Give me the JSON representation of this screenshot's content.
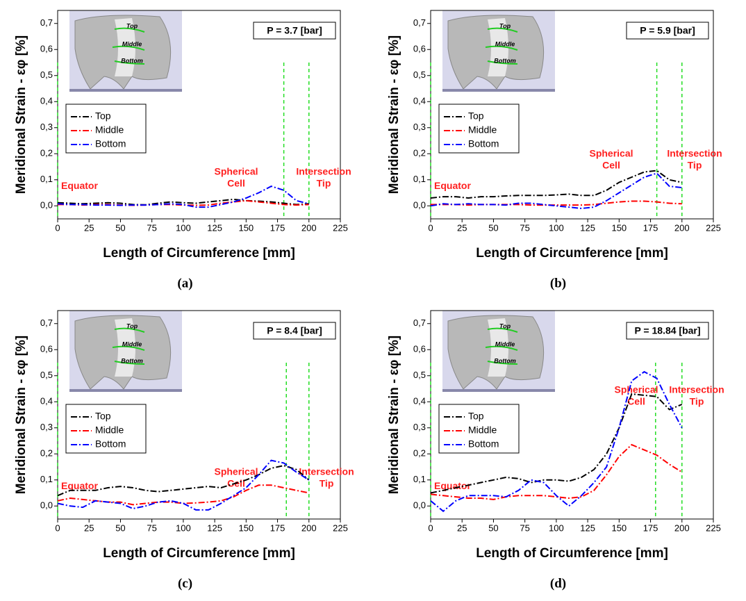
{
  "chart_data": [
    {
      "type": "line",
      "panel_label": "(a)",
      "pressure_label": "P = 3.7 [bar]",
      "xlabel": "Length of Circumference [mm]",
      "ylabel": "Meridional Strain - εφ [%]",
      "equator_label": "Equator",
      "spherical_label": [
        "Spherical",
        "Cell"
      ],
      "intersection_label": [
        "Intersection",
        "Tip"
      ],
      "inset_labels": [
        "Top",
        "Middle",
        "Bottom"
      ],
      "line_style": "dash-dot",
      "vline_color": "#22dd22",
      "vlines": [
        0,
        180,
        200
      ],
      "xlim": [
        0,
        225
      ],
      "xticks": [
        0,
        25,
        50,
        75,
        100,
        125,
        150,
        175,
        200,
        225
      ],
      "ylim": [
        -0.05,
        0.75
      ],
      "yticks": [
        {
          "value": 0,
          "label": "0,0"
        },
        {
          "value": 0.1,
          "label": "0,1"
        },
        {
          "value": 0.2,
          "label": "0,2"
        },
        {
          "value": 0.3,
          "label": "0,3"
        },
        {
          "value": 0.4,
          "label": "0,4"
        },
        {
          "value": 0.5,
          "label": "0,5"
        },
        {
          "value": 0.6,
          "label": "0,6"
        },
        {
          "value": 0.7,
          "label": "0,7"
        }
      ],
      "x": [
        0,
        10,
        20,
        30,
        40,
        50,
        60,
        70,
        80,
        90,
        100,
        110,
        120,
        130,
        140,
        150,
        160,
        170,
        180,
        190,
        200
      ],
      "series": [
        {
          "name": "Top",
          "color": "#000000",
          "values": [
            0.012,
            0.01,
            0.008,
            0.01,
            0.012,
            0.01,
            0.005,
            0.004,
            0.01,
            0.015,
            0.012,
            0.01,
            0.015,
            0.02,
            0.025,
            0.02,
            0.018,
            0.015,
            0.01,
            0.005,
            0.008
          ]
        },
        {
          "name": "Middle",
          "color": "#ff0000",
          "values": [
            0.005,
            0.005,
            0.003,
            0.005,
            0.005,
            0.003,
            0.002,
            0.003,
            0.005,
            0.005,
            0.003,
            0.002,
            0.003,
            0.01,
            0.015,
            0.02,
            0.015,
            0.01,
            0.005,
            0.003,
            0.005
          ]
        },
        {
          "name": "Bottom",
          "color": "#0000ff",
          "values": [
            0.008,
            0.005,
            0.005,
            0.003,
            0.003,
            0.002,
            0.003,
            0.003,
            0.005,
            0.008,
            0.005,
            -0.005,
            -0.005,
            0.005,
            0.015,
            0.03,
            0.05,
            0.075,
            0.06,
            0.02,
            0.008
          ]
        }
      ]
    },
    {
      "type": "line",
      "panel_label": "(b)",
      "pressure_label": "P = 5.9 [bar]",
      "xlabel": "Length of Circumference [mm]",
      "ylabel": "Meridional Strain - εφ [%]",
      "equator_label": "Equator",
      "spherical_label": [
        "Spherical",
        "Cell"
      ],
      "intersection_label": [
        "Intersection",
        "Tip"
      ],
      "inset_labels": [
        "Top",
        "Middle",
        "Bottom"
      ],
      "line_style": "dash-dot",
      "vline_color": "#22dd22",
      "vlines": [
        0,
        180,
        200
      ],
      "xlim": [
        0,
        225
      ],
      "xticks": [
        0,
        25,
        50,
        75,
        100,
        125,
        150,
        175,
        200,
        225
      ],
      "ylim": [
        -0.05,
        0.75
      ],
      "yticks": [
        {
          "value": 0,
          "label": "0,0"
        },
        {
          "value": 0.1,
          "label": "0,1"
        },
        {
          "value": 0.2,
          "label": "0,2"
        },
        {
          "value": 0.3,
          "label": "0,3"
        },
        {
          "value": 0.4,
          "label": "0,4"
        },
        {
          "value": 0.5,
          "label": "0,5"
        },
        {
          "value": 0.6,
          "label": "0,6"
        },
        {
          "value": 0.7,
          "label": "0,7"
        }
      ],
      "x": [
        0,
        10,
        20,
        30,
        40,
        50,
        60,
        70,
        80,
        90,
        100,
        110,
        120,
        130,
        140,
        150,
        160,
        170,
        180,
        190,
        200
      ],
      "series": [
        {
          "name": "Top",
          "color": "#000000",
          "values": [
            0.03,
            0.035,
            0.035,
            0.03,
            0.035,
            0.035,
            0.038,
            0.04,
            0.04,
            0.04,
            0.042,
            0.045,
            0.04,
            0.04,
            0.06,
            0.09,
            0.11,
            0.13,
            0.135,
            0.1,
            0.09
          ]
        },
        {
          "name": "Middle",
          "color": "#ff0000",
          "values": [
            0.005,
            0.005,
            0.005,
            0.003,
            0.005,
            0.005,
            0.005,
            0.005,
            0.003,
            0.003,
            0.003,
            0.003,
            0.003,
            0.005,
            0.01,
            0.015,
            0.018,
            0.018,
            0.015,
            0.01,
            0.008
          ]
        },
        {
          "name": "Bottom",
          "color": "#0000ff",
          "values": [
            0,
            0.008,
            0.005,
            0.008,
            0.005,
            0.005,
            0.003,
            0.01,
            0.01,
            0.005,
            0,
            -0.005,
            -0.01,
            -0.005,
            0.02,
            0.05,
            0.08,
            0.11,
            0.125,
            0.075,
            0.07
          ]
        }
      ]
    },
    {
      "type": "line",
      "panel_label": "(c)",
      "pressure_label": "P = 8.4 [bar]",
      "xlabel": "Length of Circumference [mm]",
      "ylabel": "Meridional Strain - εφ [%]",
      "equator_label": "Equator",
      "spherical_label": [
        "Spherical",
        "Cell"
      ],
      "intersection_label": [
        "Intersection",
        "Tip"
      ],
      "inset_labels": [
        "Top",
        "Middle",
        "Bottom"
      ],
      "line_style": "dash-dot",
      "vline_color": "#22dd22",
      "vlines": [
        0,
        182,
        200
      ],
      "xlim": [
        0,
        225
      ],
      "xticks": [
        0,
        25,
        50,
        75,
        100,
        125,
        150,
        175,
        200,
        225
      ],
      "ylim": [
        -0.05,
        0.75
      ],
      "yticks": [
        {
          "value": 0,
          "label": "0,0"
        },
        {
          "value": 0.1,
          "label": "0,1"
        },
        {
          "value": 0.2,
          "label": "0,2"
        },
        {
          "value": 0.3,
          "label": "0,3"
        },
        {
          "value": 0.4,
          "label": "0,4"
        },
        {
          "value": 0.5,
          "label": "0,5"
        },
        {
          "value": 0.6,
          "label": "0,6"
        },
        {
          "value": 0.7,
          "label": "0,7"
        }
      ],
      "x": [
        0,
        10,
        20,
        30,
        40,
        50,
        60,
        70,
        80,
        90,
        100,
        110,
        120,
        130,
        140,
        150,
        160,
        170,
        180,
        190,
        200
      ],
      "series": [
        {
          "name": "Top",
          "color": "#000000",
          "values": [
            0.04,
            0.06,
            0.06,
            0.06,
            0.07,
            0.075,
            0.07,
            0.06,
            0.055,
            0.06,
            0.065,
            0.07,
            0.075,
            0.07,
            0.085,
            0.1,
            0.12,
            0.145,
            0.155,
            0.14,
            0.1
          ]
        },
        {
          "name": "Middle",
          "color": "#ff0000",
          "values": [
            0.02,
            0.03,
            0.025,
            0.02,
            0.015,
            0.015,
            0.005,
            0.01,
            0.015,
            0.015,
            0.01,
            0.012,
            0.015,
            0.02,
            0.035,
            0.06,
            0.08,
            0.08,
            0.07,
            0.06,
            0.05
          ]
        },
        {
          "name": "Bottom",
          "color": "#0000ff",
          "values": [
            0.01,
            0,
            -0.005,
            0.02,
            0.015,
            0.01,
            -0.01,
            0,
            0.015,
            0.02,
            0.01,
            -0.015,
            -0.015,
            0.01,
            0.04,
            0.07,
            0.12,
            0.175,
            0.165,
            0.13,
            0.1
          ]
        }
      ]
    },
    {
      "type": "line",
      "panel_label": "(d)",
      "pressure_label": "P = 18.84 [bar]",
      "xlabel": "Length of Circumference [mm]",
      "ylabel": "Meridional Strain - εφ [%]",
      "equator_label": "Equator",
      "spherical_label": [
        "Spherical",
        "Cell"
      ],
      "intersection_label": [
        "Intersection",
        "Tip"
      ],
      "inset_labels": [
        "Top",
        "Middle",
        "Bottom"
      ],
      "line_style": "dash-dot",
      "vline_color": "#22dd22",
      "vlines": [
        0,
        179,
        200
      ],
      "xlim": [
        0,
        225
      ],
      "xticks": [
        0,
        25,
        50,
        75,
        100,
        125,
        150,
        175,
        200,
        225
      ],
      "ylim": [
        -0.05,
        0.75
      ],
      "yticks": [
        {
          "value": 0,
          "label": "0,0"
        },
        {
          "value": 0.1,
          "label": "0,1"
        },
        {
          "value": 0.2,
          "label": "0,2"
        },
        {
          "value": 0.3,
          "label": "0,3"
        },
        {
          "value": 0.4,
          "label": "0,4"
        },
        {
          "value": 0.5,
          "label": "0,5"
        },
        {
          "value": 0.6,
          "label": "0,6"
        },
        {
          "value": 0.7,
          "label": "0,7"
        }
      ],
      "x": [
        0,
        10,
        20,
        30,
        40,
        50,
        60,
        70,
        80,
        90,
        100,
        110,
        120,
        130,
        140,
        150,
        160,
        170,
        180,
        190,
        200
      ],
      "series": [
        {
          "name": "Top",
          "color": "#000000",
          "values": [
            0.05,
            0.06,
            0.07,
            0.08,
            0.09,
            0.1,
            0.11,
            0.105,
            0.09,
            0.1,
            0.1,
            0.095,
            0.11,
            0.14,
            0.2,
            0.3,
            0.43,
            0.425,
            0.42,
            0.37,
            0.39
          ]
        },
        {
          "name": "Middle",
          "color": "#ff0000",
          "values": [
            0.045,
            0.04,
            0.035,
            0.03,
            0.03,
            0.025,
            0.035,
            0.04,
            0.04,
            0.04,
            0.035,
            0.03,
            0.035,
            0.06,
            0.12,
            0.19,
            0.235,
            0.215,
            0.195,
            0.16,
            0.13
          ]
        },
        {
          "name": "Bottom",
          "color": "#0000ff",
          "values": [
            0.02,
            -0.02,
            0.02,
            0.04,
            0.04,
            0.04,
            0.035,
            0.06,
            0.1,
            0.09,
            0.04,
            0,
            0.04,
            0.09,
            0.15,
            0.3,
            0.48,
            0.515,
            0.49,
            0.39,
            0.3
          ]
        }
      ]
    }
  ]
}
